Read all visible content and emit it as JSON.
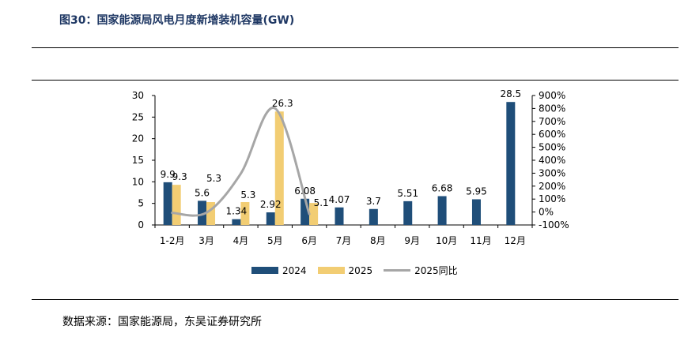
{
  "figure_title": "图30：国家能源局风电月度新增装机容量(GW)",
  "source_note": "数据来源：国家能源局，东吴证券研究所",
  "colors": {
    "series_2024": "#1f4e79",
    "series_2025": "#f2cd73",
    "series_yoy": "#a6a6a6",
    "title": "#1f3864"
  },
  "chart_data": {
    "type": "bar",
    "categories": [
      "1-2月",
      "3月",
      "4月",
      "5月",
      "6月",
      "7月",
      "8月",
      "9月",
      "10月",
      "11月",
      "12月"
    ],
    "series": [
      {
        "name": "2024",
        "type": "bar",
        "axis": "left",
        "values": [
          9.9,
          5.6,
          1.34,
          2.92,
          6.08,
          4.07,
          3.7,
          5.51,
          6.68,
          5.95,
          28.5
        ],
        "labels": [
          "9.9",
          "5.6",
          "1.34",
          "2.92",
          "6.08",
          "4.07",
          "3.7",
          "5.51",
          "6.68",
          "5.95",
          "28.5"
        ]
      },
      {
        "name": "2025",
        "type": "bar",
        "axis": "left",
        "values": [
          9.3,
          5.3,
          5.3,
          26.3,
          5.1,
          null,
          null,
          null,
          null,
          null,
          null
        ],
        "labels": [
          "9.3",
          "5.3",
          "5.3",
          "26.3",
          "5.1",
          "",
          "",
          "",
          "",
          "",
          ""
        ]
      },
      {
        "name": "2025同比",
        "type": "line",
        "axis": "right",
        "unit": "%",
        "values": [
          -6,
          -5,
          296,
          801,
          -16,
          null,
          null,
          null,
          null,
          null,
          null
        ]
      }
    ],
    "y_left": {
      "min": 0,
      "max": 30,
      "ticks": [
        "0",
        "5",
        "10",
        "15",
        "20",
        "25",
        "30"
      ]
    },
    "y_right": {
      "min": -100,
      "max": 900,
      "ticks": [
        "-100%",
        "0%",
        "100%",
        "200%",
        "300%",
        "400%",
        "500%",
        "600%",
        "700%",
        "800%",
        "900%"
      ]
    },
    "grid": false,
    "legend_position": "bottom"
  }
}
